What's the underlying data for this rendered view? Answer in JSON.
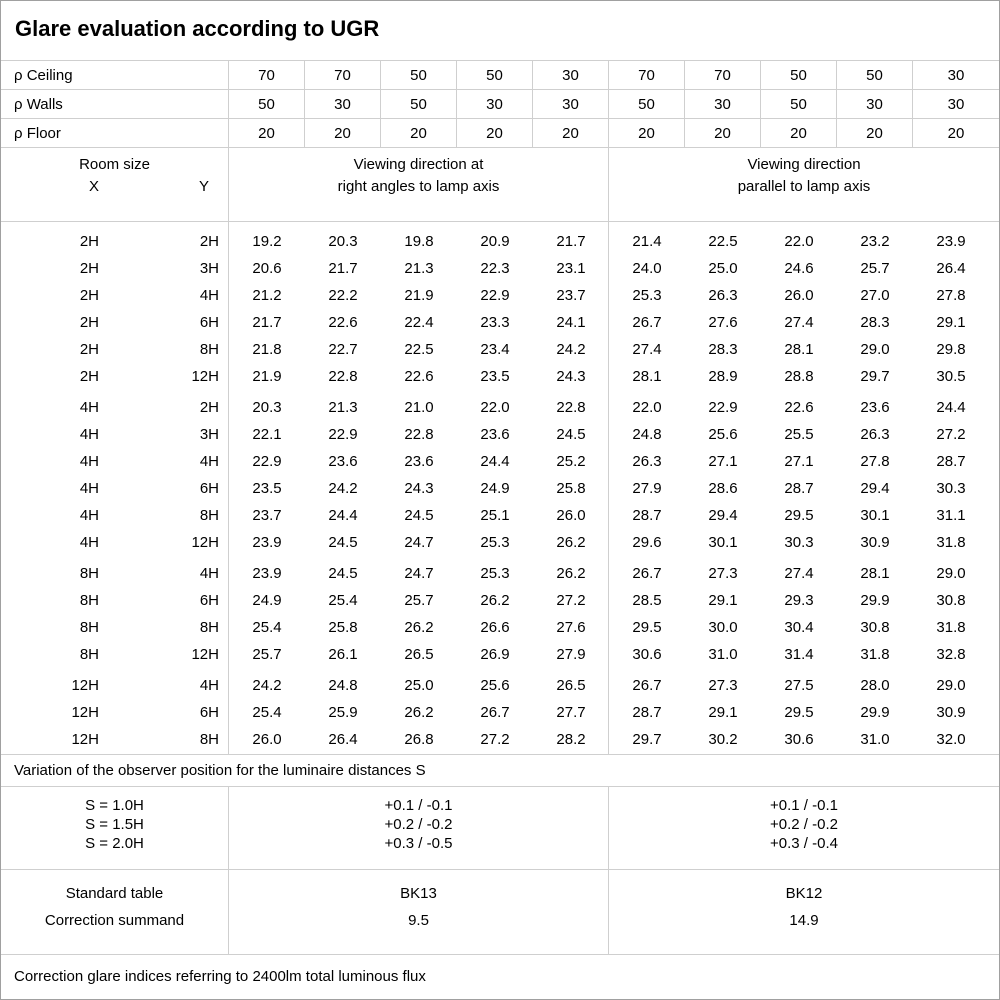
{
  "title": "Glare evaluation according to UGR",
  "reflectance_rows": [
    {
      "label": "ρ Ceiling",
      "values": [
        "70",
        "70",
        "50",
        "50",
        "30",
        "70",
        "70",
        "50",
        "50",
        "30"
      ]
    },
    {
      "label": "ρ Walls",
      "values": [
        "50",
        "30",
        "50",
        "30",
        "30",
        "50",
        "30",
        "50",
        "30",
        "30"
      ]
    },
    {
      "label": "ρ Floor",
      "values": [
        "20",
        "20",
        "20",
        "20",
        "20",
        "20",
        "20",
        "20",
        "20",
        "20"
      ]
    }
  ],
  "room_header": {
    "title": "Room size",
    "x_label": "X",
    "y_label": "Y"
  },
  "group_headers": {
    "left_line1": "Viewing direction at",
    "left_line2": "right angles to lamp axis",
    "right_line1": "Viewing direction",
    "right_line2": "parallel to lamp axis"
  },
  "ugr_blocks": [
    {
      "rows": [
        {
          "x": "2H",
          "y": "2H",
          "left": [
            "19.2",
            "20.3",
            "19.8",
            "20.9",
            "21.7"
          ],
          "right": [
            "21.4",
            "22.5",
            "22.0",
            "23.2",
            "23.9"
          ]
        },
        {
          "x": "2H",
          "y": "3H",
          "left": [
            "20.6",
            "21.7",
            "21.3",
            "22.3",
            "23.1"
          ],
          "right": [
            "24.0",
            "25.0",
            "24.6",
            "25.7",
            "26.4"
          ]
        },
        {
          "x": "2H",
          "y": "4H",
          "left": [
            "21.2",
            "22.2",
            "21.9",
            "22.9",
            "23.7"
          ],
          "right": [
            "25.3",
            "26.3",
            "26.0",
            "27.0",
            "27.8"
          ]
        },
        {
          "x": "2H",
          "y": "6H",
          "left": [
            "21.7",
            "22.6",
            "22.4",
            "23.3",
            "24.1"
          ],
          "right": [
            "26.7",
            "27.6",
            "27.4",
            "28.3",
            "29.1"
          ]
        },
        {
          "x": "2H",
          "y": "8H",
          "left": [
            "21.8",
            "22.7",
            "22.5",
            "23.4",
            "24.2"
          ],
          "right": [
            "27.4",
            "28.3",
            "28.1",
            "29.0",
            "29.8"
          ]
        },
        {
          "x": "2H",
          "y": "12H",
          "left": [
            "21.9",
            "22.8",
            "22.6",
            "23.5",
            "24.3"
          ],
          "right": [
            "28.1",
            "28.9",
            "28.8",
            "29.7",
            "30.5"
          ]
        }
      ]
    },
    {
      "rows": [
        {
          "x": "4H",
          "y": "2H",
          "left": [
            "20.3",
            "21.3",
            "21.0",
            "22.0",
            "22.8"
          ],
          "right": [
            "22.0",
            "22.9",
            "22.6",
            "23.6",
            "24.4"
          ]
        },
        {
          "x": "4H",
          "y": "3H",
          "left": [
            "22.1",
            "22.9",
            "22.8",
            "23.6",
            "24.5"
          ],
          "right": [
            "24.8",
            "25.6",
            "25.5",
            "26.3",
            "27.2"
          ]
        },
        {
          "x": "4H",
          "y": "4H",
          "left": [
            "22.9",
            "23.6",
            "23.6",
            "24.4",
            "25.2"
          ],
          "right": [
            "26.3",
            "27.1",
            "27.1",
            "27.8",
            "28.7"
          ]
        },
        {
          "x": "4H",
          "y": "6H",
          "left": [
            "23.5",
            "24.2",
            "24.3",
            "24.9",
            "25.8"
          ],
          "right": [
            "27.9",
            "28.6",
            "28.7",
            "29.4",
            "30.3"
          ]
        },
        {
          "x": "4H",
          "y": "8H",
          "left": [
            "23.7",
            "24.4",
            "24.5",
            "25.1",
            "26.0"
          ],
          "right": [
            "28.7",
            "29.4",
            "29.5",
            "30.1",
            "31.1"
          ]
        },
        {
          "x": "4H",
          "y": "12H",
          "left": [
            "23.9",
            "24.5",
            "24.7",
            "25.3",
            "26.2"
          ],
          "right": [
            "29.6",
            "30.1",
            "30.3",
            "30.9",
            "31.8"
          ]
        }
      ]
    },
    {
      "rows": [
        {
          "x": "8H",
          "y": "4H",
          "left": [
            "23.9",
            "24.5",
            "24.7",
            "25.3",
            "26.2"
          ],
          "right": [
            "26.7",
            "27.3",
            "27.4",
            "28.1",
            "29.0"
          ]
        },
        {
          "x": "8H",
          "y": "6H",
          "left": [
            "24.9",
            "25.4",
            "25.7",
            "26.2",
            "27.2"
          ],
          "right": [
            "28.5",
            "29.1",
            "29.3",
            "29.9",
            "30.8"
          ]
        },
        {
          "x": "8H",
          "y": "8H",
          "left": [
            "25.4",
            "25.8",
            "26.2",
            "26.6",
            "27.6"
          ],
          "right": [
            "29.5",
            "30.0",
            "30.4",
            "30.8",
            "31.8"
          ]
        },
        {
          "x": "8H",
          "y": "12H",
          "left": [
            "25.7",
            "26.1",
            "26.5",
            "26.9",
            "27.9"
          ],
          "right": [
            "30.6",
            "31.0",
            "31.4",
            "31.8",
            "32.8"
          ]
        }
      ]
    },
    {
      "rows": [
        {
          "x": "12H",
          "y": "4H",
          "left": [
            "24.2",
            "24.8",
            "25.0",
            "25.6",
            "26.5"
          ],
          "right": [
            "26.7",
            "27.3",
            "27.5",
            "28.0",
            "29.0"
          ]
        },
        {
          "x": "12H",
          "y": "6H",
          "left": [
            "25.4",
            "25.9",
            "26.2",
            "26.7",
            "27.7"
          ],
          "right": [
            "28.7",
            "29.1",
            "29.5",
            "29.9",
            "30.9"
          ]
        },
        {
          "x": "12H",
          "y": "8H",
          "left": [
            "26.0",
            "26.4",
            "26.8",
            "27.2",
            "28.2"
          ],
          "right": [
            "29.7",
            "30.2",
            "30.6",
            "31.0",
            "32.0"
          ]
        }
      ]
    }
  ],
  "variation": {
    "caption": "Variation of the observer position for the luminaire distances S",
    "rows": [
      {
        "label": "S = 1.0H",
        "left": "+0.1 / -0.1",
        "right": "+0.1 / -0.1"
      },
      {
        "label": "S = 1.5H",
        "left": "+0.2 / -0.2",
        "right": "+0.2 / -0.2"
      },
      {
        "label": "S = 2.0H",
        "left": "+0.3 / -0.5",
        "right": "+0.3 / -0.4"
      }
    ]
  },
  "summary": {
    "rows": [
      {
        "label": "Standard table",
        "left": "BK13",
        "right": "BK12"
      },
      {
        "label": "Correction summand",
        "left": "9.5",
        "right": "14.9"
      }
    ]
  },
  "footer_note": "Correction glare indices referring to 2400lm total luminous flux"
}
